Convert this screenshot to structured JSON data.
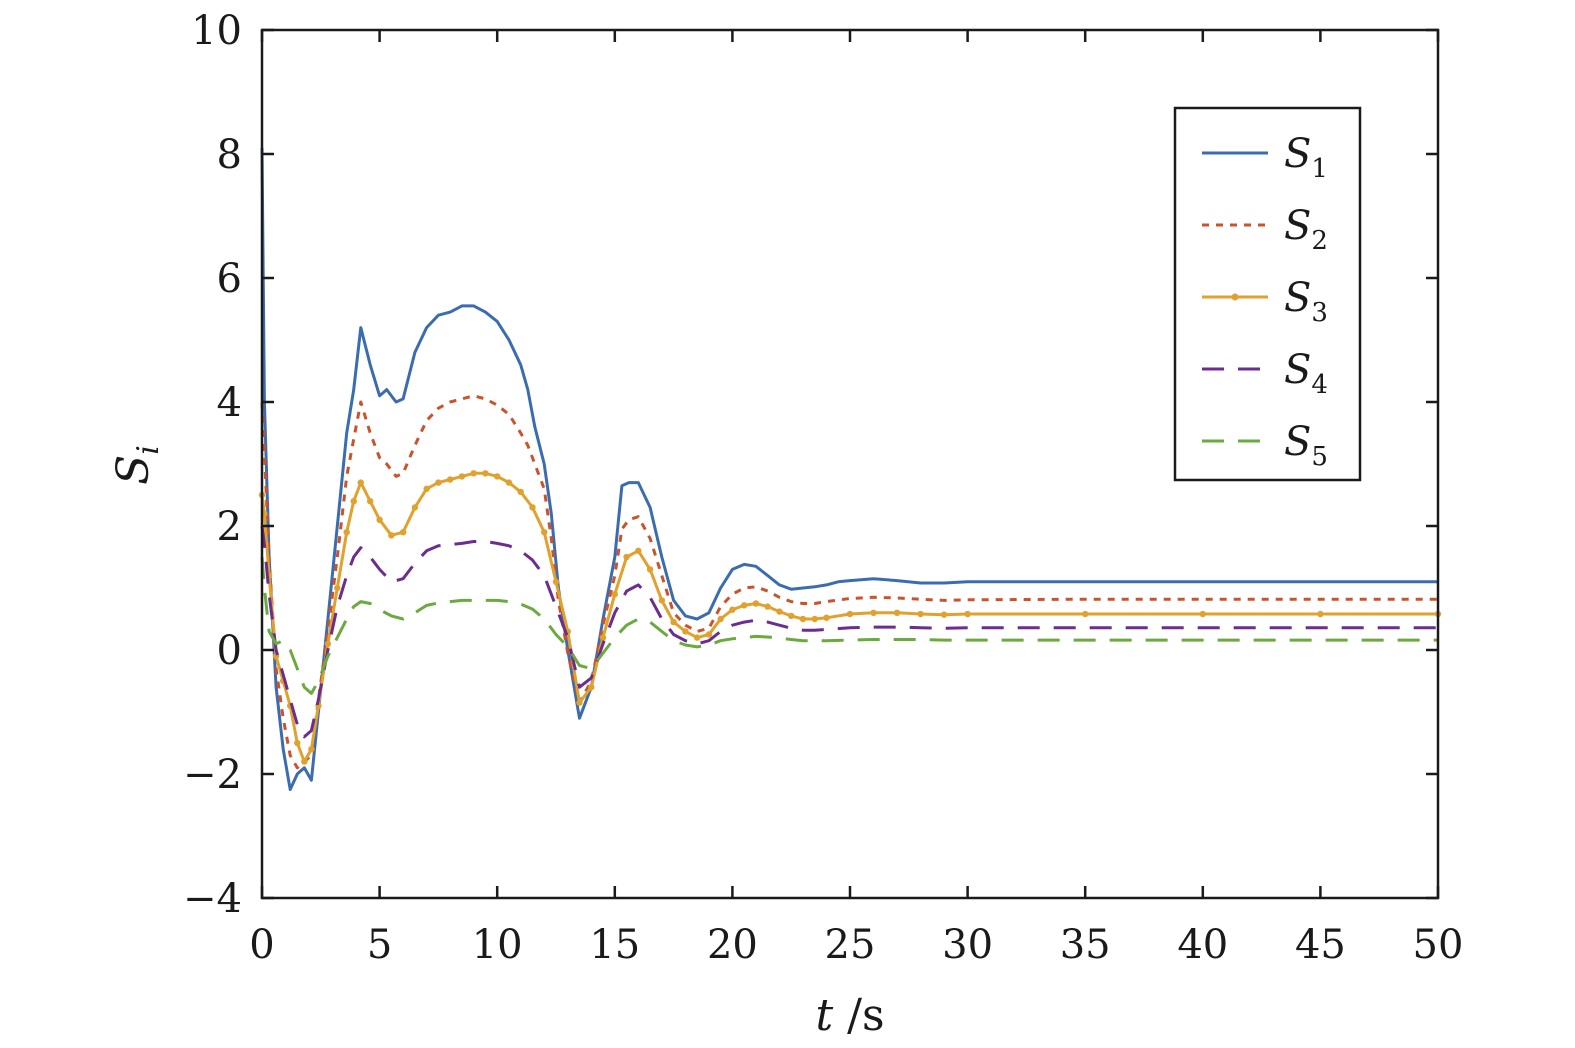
{
  "chart_data": {
    "type": "line",
    "title": "",
    "xlabel_var": "t",
    "xlabel_unit": " /s",
    "ylabel_var": "S",
    "ylabel_sub": "i",
    "xlim": [
      0,
      50
    ],
    "ylim": [
      -4,
      10
    ],
    "xticks": [
      0,
      5,
      10,
      15,
      20,
      25,
      30,
      35,
      40,
      45,
      50
    ],
    "yticks": [
      -4,
      -2,
      0,
      2,
      4,
      6,
      8,
      10
    ],
    "xtick_labels": [
      "0",
      "5",
      "10",
      "15",
      "20",
      "25",
      "30",
      "35",
      "40",
      "45",
      "50"
    ],
    "ytick_labels": [
      "−4",
      "−2",
      "0",
      "2",
      "4",
      "6",
      "8",
      "10"
    ],
    "grid": false,
    "legend_position": "top-right",
    "series": [
      {
        "name": "S",
        "sub": "1",
        "color": "#3b6cb0",
        "style": "solid",
        "x": [
          0,
          0.1,
          0.3,
          0.6,
          0.9,
          1.2,
          1.5,
          1.8,
          2.1,
          2.4,
          2.8,
          3.2,
          3.6,
          3.9,
          4.2,
          4.6,
          5.0,
          5.3,
          5.7,
          6.0,
          6.5,
          7.0,
          7.5,
          8.0,
          8.5,
          9.0,
          9.5,
          10.0,
          10.5,
          11.0,
          11.3,
          11.6,
          12.0,
          12.3,
          12.6,
          13.0,
          13.5,
          14.0,
          14.5,
          15.0,
          15.3,
          15.6,
          16.0,
          16.5,
          17.0,
          17.5,
          18.0,
          18.5,
          19.0,
          19.5,
          20.0,
          20.5,
          21.0,
          21.5,
          22.0,
          22.5,
          23.0,
          23.5,
          24.0,
          24.5,
          25.0,
          26.0,
          27.0,
          28.0,
          29.0,
          30.0,
          31.0,
          32.0,
          33.0,
          35.0,
          40.0,
          45.0,
          50.0
        ],
        "values": [
          8.1,
          4.0,
          1.5,
          -0.6,
          -1.6,
          -2.25,
          -2.0,
          -1.9,
          -2.1,
          -1.0,
          0.5,
          2.0,
          3.5,
          4.2,
          5.2,
          4.6,
          4.1,
          4.2,
          4.0,
          4.05,
          4.8,
          5.2,
          5.4,
          5.45,
          5.55,
          5.55,
          5.45,
          5.3,
          5.0,
          4.6,
          4.2,
          3.6,
          3.0,
          2.2,
          1.0,
          0.0,
          -1.1,
          -0.6,
          0.5,
          1.5,
          2.65,
          2.7,
          2.7,
          2.3,
          1.5,
          0.8,
          0.55,
          0.5,
          0.6,
          1.0,
          1.3,
          1.38,
          1.35,
          1.2,
          1.05,
          0.98,
          1.0,
          1.02,
          1.05,
          1.1,
          1.12,
          1.15,
          1.12,
          1.08,
          1.08,
          1.1,
          1.1,
          1.1,
          1.1,
          1.1,
          1.1,
          1.1,
          1.1
        ]
      },
      {
        "name": "S",
        "sub": "2",
        "color": "#c9542b",
        "style": "dotted",
        "x": [
          0,
          0.1,
          0.3,
          0.6,
          0.9,
          1.2,
          1.5,
          1.8,
          2.1,
          2.4,
          2.8,
          3.2,
          3.6,
          3.9,
          4.2,
          4.6,
          5.0,
          5.3,
          5.7,
          6.0,
          6.5,
          7.0,
          7.5,
          8.0,
          8.5,
          9.0,
          9.5,
          10.0,
          10.5,
          11.0,
          11.3,
          11.6,
          12.0,
          12.3,
          12.6,
          13.0,
          13.5,
          14.0,
          14.5,
          15.0,
          15.3,
          15.6,
          16.0,
          16.5,
          17.0,
          17.5,
          18.0,
          18.5,
          19.0,
          19.5,
          20.0,
          20.5,
          21.0,
          21.5,
          22.0,
          22.5,
          23.0,
          23.5,
          24.0,
          25.0,
          26.0,
          27.0,
          28.0,
          29.0,
          30.0,
          35.0,
          40.0,
          45.0,
          50.0
        ],
        "values": [
          4.0,
          3.2,
          1.5,
          -0.3,
          -1.1,
          -1.7,
          -1.9,
          -1.8,
          -1.7,
          -0.8,
          0.3,
          1.5,
          2.8,
          3.4,
          4.0,
          3.5,
          3.1,
          3.0,
          2.8,
          2.85,
          3.3,
          3.7,
          3.9,
          4.0,
          4.05,
          4.1,
          4.05,
          3.95,
          3.8,
          3.5,
          3.3,
          3.0,
          2.6,
          1.8,
          0.8,
          -0.05,
          -0.85,
          -0.5,
          0.4,
          1.2,
          1.95,
          2.1,
          2.15,
          1.8,
          1.2,
          0.6,
          0.4,
          0.3,
          0.35,
          0.7,
          0.9,
          1.0,
          1.02,
          0.95,
          0.85,
          0.78,
          0.75,
          0.75,
          0.78,
          0.83,
          0.85,
          0.84,
          0.82,
          0.8,
          0.81,
          0.82,
          0.82,
          0.82,
          0.82
        ]
      },
      {
        "name": "S",
        "sub": "3",
        "color": "#e0a12e",
        "style": "solid-dots",
        "x": [
          0,
          0.1,
          0.3,
          0.6,
          0.9,
          1.2,
          1.5,
          1.8,
          2.1,
          2.4,
          2.8,
          3.2,
          3.6,
          3.9,
          4.2,
          4.6,
          5.0,
          5.5,
          6.0,
          6.5,
          7.0,
          7.5,
          8.0,
          8.5,
          9.0,
          9.5,
          10.0,
          10.5,
          11.0,
          11.5,
          12.0,
          12.5,
          13.0,
          13.5,
          14.0,
          14.5,
          15.0,
          15.5,
          16.0,
          16.5,
          17.0,
          17.5,
          18.0,
          18.5,
          19.0,
          19.5,
          20.0,
          20.5,
          21.0,
          21.5,
          22.0,
          22.5,
          23.0,
          23.5,
          24.0,
          25.0,
          26.0,
          27.0,
          28.0,
          29.0,
          30.0,
          35.0,
          40.0,
          45.0,
          50.0
        ],
        "values": [
          2.5,
          2.2,
          1.2,
          -0.1,
          -0.5,
          -0.9,
          -1.5,
          -1.8,
          -1.6,
          -0.9,
          0.1,
          1.0,
          1.9,
          2.4,
          2.7,
          2.4,
          2.1,
          1.85,
          1.9,
          2.3,
          2.6,
          2.7,
          2.75,
          2.8,
          2.85,
          2.85,
          2.8,
          2.7,
          2.55,
          2.3,
          1.9,
          1.1,
          0.3,
          -0.85,
          -0.6,
          0.2,
          0.9,
          1.5,
          1.6,
          1.3,
          0.8,
          0.45,
          0.3,
          0.2,
          0.25,
          0.5,
          0.65,
          0.72,
          0.75,
          0.7,
          0.62,
          0.55,
          0.5,
          0.5,
          0.52,
          0.58,
          0.6,
          0.6,
          0.58,
          0.57,
          0.58,
          0.58,
          0.58,
          0.58,
          0.58
        ]
      },
      {
        "name": "S",
        "sub": "4",
        "color": "#6b2d8f",
        "style": "dashed",
        "x": [
          0,
          0.1,
          0.3,
          0.6,
          0.9,
          1.2,
          1.5,
          1.8,
          2.1,
          2.4,
          2.8,
          3.2,
          3.6,
          3.9,
          4.2,
          4.6,
          5.0,
          5.5,
          6.0,
          6.5,
          7.0,
          7.5,
          8.0,
          8.5,
          9.0,
          9.5,
          10.0,
          10.5,
          11.0,
          11.5,
          12.0,
          12.5,
          13.0,
          13.5,
          14.0,
          14.5,
          15.0,
          15.5,
          16.0,
          16.5,
          17.0,
          17.5,
          18.0,
          18.5,
          19.0,
          19.5,
          20.0,
          20.5,
          21.0,
          21.5,
          22.0,
          22.5,
          23.0,
          23.5,
          24.0,
          25.0,
          26.0,
          27.0,
          28.0,
          29.0,
          30.0,
          35.0,
          40.0,
          45.0,
          50.0
        ],
        "values": [
          2.0,
          1.7,
          0.9,
          0.0,
          -0.4,
          -0.8,
          -1.2,
          -1.4,
          -1.3,
          -0.8,
          0.0,
          0.7,
          1.2,
          1.5,
          1.65,
          1.5,
          1.3,
          1.1,
          1.15,
          1.4,
          1.6,
          1.68,
          1.7,
          1.72,
          1.75,
          1.75,
          1.72,
          1.68,
          1.6,
          1.45,
          1.2,
          0.7,
          0.2,
          -0.6,
          -0.45,
          0.1,
          0.6,
          0.95,
          1.05,
          0.85,
          0.5,
          0.25,
          0.15,
          0.1,
          0.15,
          0.3,
          0.4,
          0.45,
          0.48,
          0.45,
          0.4,
          0.35,
          0.32,
          0.32,
          0.33,
          0.36,
          0.37,
          0.37,
          0.36,
          0.35,
          0.36,
          0.36,
          0.36,
          0.36,
          0.36
        ]
      },
      {
        "name": "S",
        "sub": "5",
        "color": "#6aaa3f",
        "style": "dashed",
        "x": [
          0,
          0.1,
          0.3,
          0.6,
          0.9,
          1.2,
          1.5,
          1.8,
          2.1,
          2.4,
          2.8,
          3.2,
          3.6,
          3.9,
          4.2,
          4.6,
          5.0,
          5.5,
          6.0,
          6.5,
          7.0,
          7.5,
          8.0,
          8.5,
          9.0,
          9.5,
          10.0,
          10.5,
          11.0,
          11.5,
          12.0,
          12.5,
          13.0,
          13.5,
          14.0,
          14.5,
          15.0,
          15.5,
          16.0,
          16.5,
          17.0,
          17.5,
          18.0,
          18.5,
          19.0,
          19.5,
          20.0,
          20.5,
          21.0,
          21.5,
          22.0,
          22.5,
          23.0,
          23.5,
          24.0,
          25.0,
          26.0,
          27.0,
          28.0,
          29.0,
          30.0,
          35.0,
          40.0,
          45.0,
          50.0
        ],
        "values": [
          1.5,
          1.0,
          0.3,
          0.1,
          0.15,
          0.0,
          -0.3,
          -0.6,
          -0.7,
          -0.5,
          -0.1,
          0.2,
          0.5,
          0.7,
          0.78,
          0.75,
          0.65,
          0.55,
          0.5,
          0.6,
          0.72,
          0.76,
          0.78,
          0.8,
          0.8,
          0.8,
          0.8,
          0.78,
          0.74,
          0.66,
          0.5,
          0.25,
          0.05,
          -0.25,
          -0.3,
          -0.05,
          0.2,
          0.4,
          0.5,
          0.45,
          0.3,
          0.15,
          0.08,
          0.05,
          0.08,
          0.15,
          0.18,
          0.2,
          0.22,
          0.21,
          0.19,
          0.17,
          0.15,
          0.15,
          0.15,
          0.16,
          0.17,
          0.17,
          0.17,
          0.16,
          0.16,
          0.16,
          0.16,
          0.16,
          0.16
        ]
      }
    ]
  }
}
